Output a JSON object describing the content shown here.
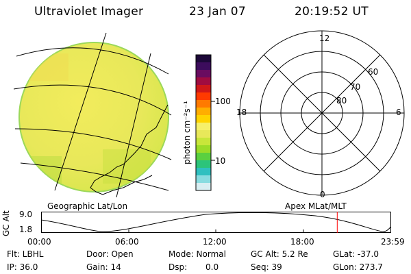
{
  "header": {
    "instrument": "Ultraviolet Imager",
    "date": "23 Jan 07",
    "time": "20:19:52 UT"
  },
  "colors": {
    "image_fill": "#e8e85a",
    "image_edge": "#9bd85a",
    "marker": "#ff0000"
  },
  "colorbar": {
    "label": "photon cm⁻²s⁻¹",
    "ticks": [
      "100",
      "10"
    ],
    "colors": [
      "#1c0838",
      "#3c0c5c",
      "#6a0c60",
      "#a00c40",
      "#d01818",
      "#ff3a00",
      "#ff7a00",
      "#ffae00",
      "#ffd400",
      "#f6f06a",
      "#e8e85a",
      "#c8e63a",
      "#9bdc28",
      "#5ad040",
      "#2cc47a",
      "#30c0c0",
      "#88dce0",
      "#d8eef2"
    ]
  },
  "panels": {
    "left_label": "Geographic Lat/Lon",
    "right_label": "Apex MLat/MLT"
  },
  "polar": {
    "top": "12",
    "left": "18",
    "right": "6",
    "bottom": "0",
    "lat_labels": [
      "60",
      "70",
      "80"
    ]
  },
  "altitude_plot": {
    "ylabel": "GC Alt",
    "y_ticks": [
      "9.0",
      "1.8"
    ],
    "x_ticks": [
      "00:00",
      "06:00",
      "12:00",
      "18:00",
      "23:59"
    ],
    "current_time_fraction": 0.846
  },
  "info": {
    "filter": "Flt: LBHL",
    "ip": "IP: 36.0",
    "door": "Door: Open",
    "gain": "Gain: 14",
    "mode": "Mode: Normal",
    "dsp_label": "Dsp:",
    "dsp_value": "0.0",
    "gc_alt": "GC Alt: 5.2 Re",
    "seq": "Seq: 39",
    "glat": "GLat: -37.0",
    "glon": "GLon: 273.7"
  }
}
